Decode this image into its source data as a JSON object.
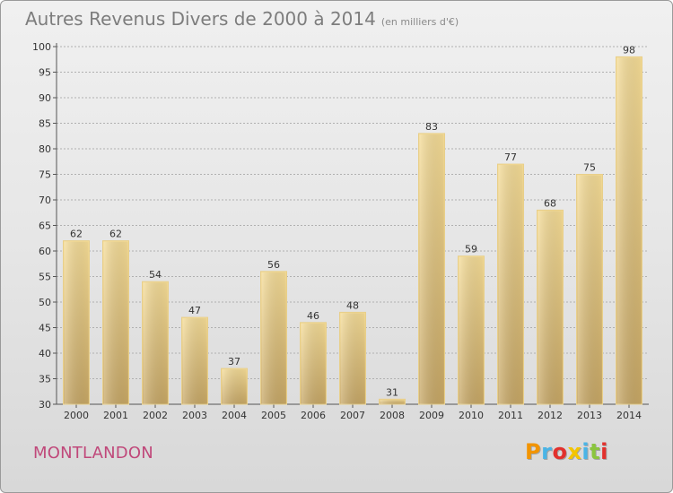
{
  "title": "Autres Revenus Divers de 2000 à 2014",
  "subtitle": "(en milliers d'€)",
  "town": "MONTLANDON",
  "logo": {
    "letters": [
      "P",
      "r",
      "o",
      "x",
      "i",
      "t",
      "i"
    ],
    "colors": [
      "#f29400",
      "#4ab4e6",
      "#e2312d",
      "#f4c500",
      "#4ab4e6",
      "#8bc53f",
      "#e2312d"
    ]
  },
  "colors": {
    "bar_light": "#f5dc96",
    "bar_dark": "#c7a765",
    "grid": "#b0b0b0",
    "town": "#c0487a"
  },
  "chart_data": {
    "type": "bar",
    "title": "Autres Revenus Divers de 2000 à 2014",
    "subtitle": "(en milliers d'€)",
    "categories": [
      "2000",
      "2001",
      "2002",
      "2003",
      "2004",
      "2005",
      "2006",
      "2007",
      "2008",
      "2009",
      "2010",
      "2011",
      "2012",
      "2013",
      "2014"
    ],
    "values": [
      62,
      62,
      54,
      47,
      37,
      56,
      46,
      48,
      31,
      83,
      59,
      77,
      68,
      75,
      98
    ],
    "xlabel": "",
    "ylabel": "",
    "ylim": [
      30,
      100
    ],
    "yticks": [
      30,
      35,
      40,
      45,
      50,
      55,
      60,
      65,
      70,
      75,
      80,
      85,
      90,
      95,
      100
    ],
    "grid": "horizontal",
    "data_labels": true
  }
}
